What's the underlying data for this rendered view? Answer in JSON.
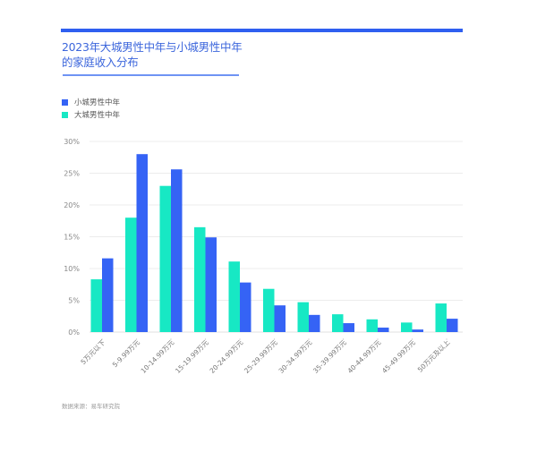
{
  "header": {
    "title_line1": "2023年大城男性中年与小城男性中年",
    "title_line2": "的家庭收入分布"
  },
  "colors": {
    "accent": "#2f5ff0",
    "title": "#3c66dc",
    "small_city": "#3563f5",
    "big_city": "#17e8c4",
    "grid": "#ececec",
    "tick_text": "#888888"
  },
  "legend": [
    {
      "label": "小城男性中年",
      "color": "#3563f5"
    },
    {
      "label": "大城男性中年",
      "color": "#17e8c4"
    }
  ],
  "source": "数据来源：易车研究院",
  "chart_data": {
    "type": "bar",
    "title": "2023年大城男性中年与小城男性中年的家庭收入分布",
    "xlabel": "",
    "ylabel": "",
    "ylim": [
      0,
      30
    ],
    "yticks": [
      0,
      5,
      10,
      15,
      20,
      25,
      30
    ],
    "ytick_labels": [
      "0%",
      "5%",
      "10%",
      "15%",
      "20%",
      "25%",
      "30%"
    ],
    "grid": true,
    "legend_position": "top-left",
    "categories": [
      "5万元以下",
      "5-9.99万元",
      "10-14.99万元",
      "15-19.99万元",
      "20-24.99万元",
      "25-29.99万元",
      "30-34.99万元",
      "35-39.99万元",
      "40-44.99万元",
      "45-49.99万元",
      "50万元及以上"
    ],
    "series": [
      {
        "name": "大城男性中年",
        "color": "#17e8c4",
        "values": [
          8.3,
          18.0,
          23.0,
          16.5,
          11.1,
          6.8,
          4.7,
          2.8,
          2.0,
          1.5,
          4.5
        ]
      },
      {
        "name": "小城男性中年",
        "color": "#3563f5",
        "values": [
          11.6,
          28.0,
          25.6,
          14.9,
          7.8,
          4.2,
          2.7,
          1.4,
          0.7,
          0.4,
          2.1
        ]
      }
    ]
  }
}
